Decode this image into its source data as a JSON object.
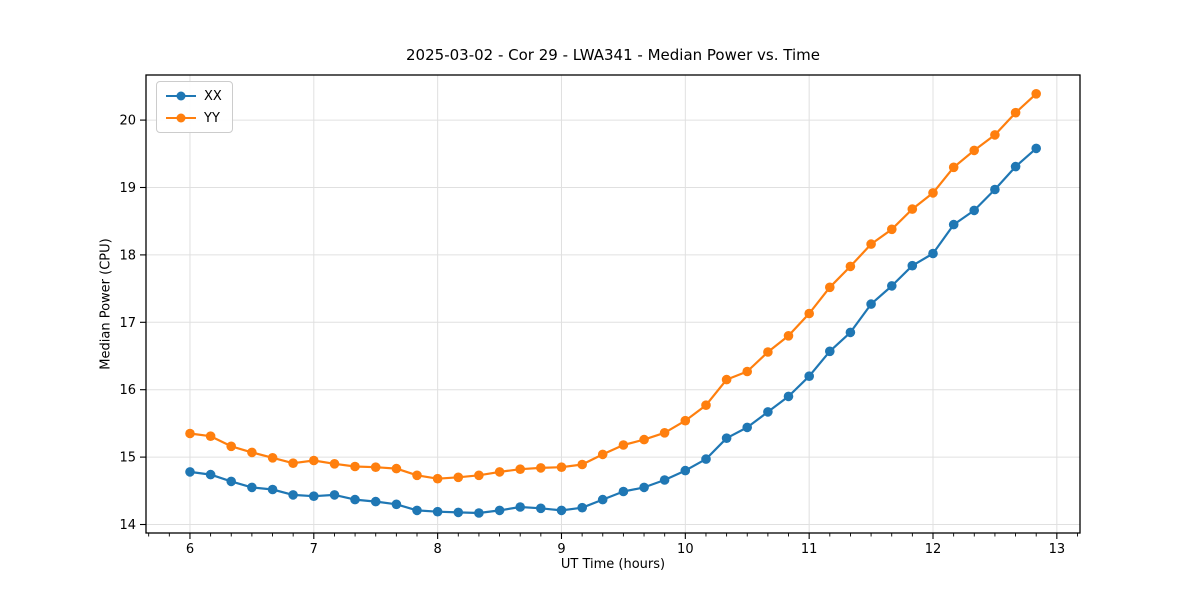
{
  "figure": {
    "kind": "line-chart-figure"
  },
  "chart_data": {
    "type": "line",
    "title": "2025-03-02 - Cor 29 - LWA341 - Median Power vs. Time",
    "xlabel": "UT Time (hours)",
    "ylabel": "Median Power (CPU)",
    "xlim": [
      5.645,
      13.187
    ],
    "ylim": [
      13.874,
      20.669
    ],
    "x_ticks": [
      6,
      7,
      8,
      9,
      10,
      11,
      12,
      13
    ],
    "y_ticks": [
      14,
      15,
      16,
      17,
      18,
      19,
      20
    ],
    "x_minor_divisions": 6,
    "grid": true,
    "grid_color": "#e0e0e0",
    "spine_color": "#000000",
    "legend_position": "upper left",
    "x": [
      6.0,
      6.167,
      6.333,
      6.5,
      6.667,
      6.833,
      7.0,
      7.167,
      7.333,
      7.5,
      7.667,
      7.833,
      8.0,
      8.167,
      8.333,
      8.5,
      8.667,
      8.833,
      9.0,
      9.167,
      9.333,
      9.5,
      9.667,
      9.833,
      10.0,
      10.167,
      10.333,
      10.5,
      10.667,
      10.833,
      11.0,
      11.167,
      11.333,
      11.5,
      11.667,
      11.833,
      12.0,
      12.167,
      12.333,
      12.5,
      12.667,
      12.833
    ],
    "series": [
      {
        "name": "XX",
        "color": "#1f77b4",
        "values": [
          14.78,
          14.74,
          14.64,
          14.55,
          14.52,
          14.44,
          14.42,
          14.44,
          14.37,
          14.34,
          14.3,
          14.21,
          14.19,
          14.18,
          14.17,
          14.21,
          14.26,
          14.24,
          14.21,
          14.25,
          14.37,
          14.49,
          14.55,
          14.66,
          14.8,
          14.97,
          15.28,
          15.44,
          15.67,
          15.9,
          16.2,
          16.57,
          16.85,
          17.27,
          17.54,
          17.84,
          18.02,
          18.45,
          18.66,
          18.97,
          19.31,
          19.58
        ]
      },
      {
        "name": "YY",
        "color": "#ff7f0e",
        "values": [
          15.35,
          15.31,
          15.16,
          15.07,
          14.99,
          14.91,
          14.95,
          14.9,
          14.86,
          14.85,
          14.83,
          14.73,
          14.68,
          14.7,
          14.73,
          14.78,
          14.82,
          14.84,
          14.85,
          14.89,
          15.04,
          15.18,
          15.26,
          15.36,
          15.54,
          15.77,
          16.15,
          16.27,
          16.56,
          16.8,
          17.13,
          17.52,
          17.83,
          18.16,
          18.38,
          18.68,
          18.92,
          19.3,
          19.55,
          19.78,
          20.11,
          20.39
        ]
      }
    ]
  }
}
